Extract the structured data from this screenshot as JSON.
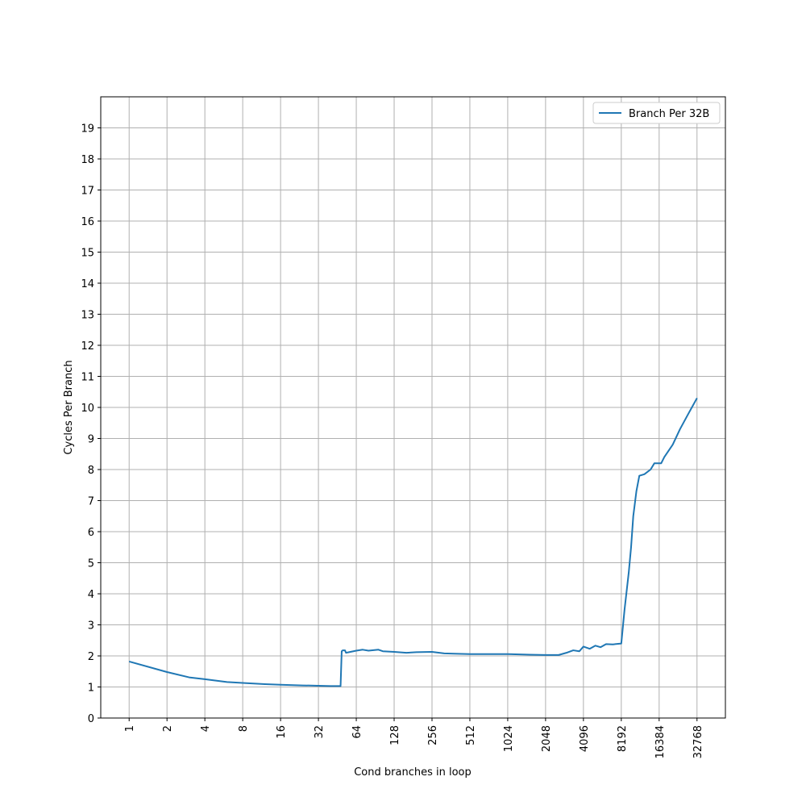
{
  "chart_data": {
    "type": "line",
    "x_label": "Cond branches in loop",
    "y_label": "Cycles Per Branch",
    "x_scale": "log2",
    "xlim": [
      0.5946,
      55109
    ],
    "xticks": [
      1,
      2,
      4,
      8,
      16,
      32,
      64,
      128,
      256,
      512,
      1024,
      2048,
      4096,
      8192,
      16384,
      32768
    ],
    "ylim": [
      0,
      20
    ],
    "yticks": [
      0,
      1,
      2,
      3,
      4,
      5,
      6,
      7,
      8,
      9,
      10,
      11,
      12,
      13,
      14,
      15,
      16,
      17,
      18,
      19
    ],
    "grid": true,
    "legend": "upper right",
    "x": [
      1,
      2,
      3,
      4,
      6,
      8,
      12,
      16,
      24,
      32,
      40,
      48,
      49,
      50,
      52,
      53,
      56,
      64,
      72,
      80,
      96,
      104,
      128,
      160,
      192,
      256,
      320,
      384,
      512,
      768,
      1024,
      1536,
      2048,
      2600,
      3000,
      3400,
      3800,
      4096,
      4600,
      5100,
      5600,
      6200,
      7000,
      8192,
      8700,
      9400,
      9800,
      10200,
      10800,
      11400,
      12500,
      14000,
      15000,
      17000,
      18000,
      21000,
      24000,
      28000,
      32768
    ],
    "series": [
      {
        "name": "Branch Per 32B",
        "color": "#1f77b4",
        "values": [
          1.82,
          1.48,
          1.31,
          1.25,
          1.16,
          1.13,
          1.09,
          1.07,
          1.05,
          1.04,
          1.03,
          1.03,
          2.15,
          2.18,
          2.18,
          2.1,
          2.12,
          2.17,
          2.2,
          2.17,
          2.2,
          2.15,
          2.13,
          2.1,
          2.12,
          2.13,
          2.08,
          2.07,
          2.06,
          2.06,
          2.06,
          2.04,
          2.03,
          2.03,
          2.1,
          2.18,
          2.15,
          2.3,
          2.23,
          2.33,
          2.28,
          2.38,
          2.37,
          2.4,
          3.5,
          4.7,
          5.5,
          6.5,
          7.3,
          7.8,
          7.85,
          8.0,
          8.2,
          8.2,
          8.4,
          8.8,
          9.3,
          9.8,
          10.3
        ]
      }
    ]
  }
}
